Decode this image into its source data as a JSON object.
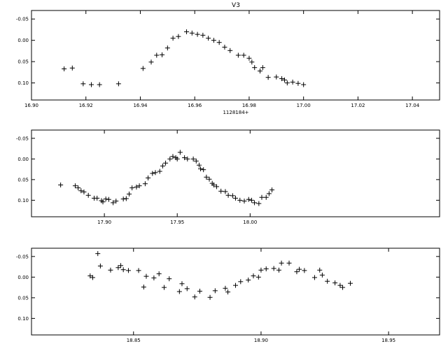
{
  "chart_data": [
    {
      "type": "scatter",
      "title": "V3",
      "offset_label": "1128184+",
      "ylim": [
        0.14,
        -0.07
      ],
      "y_inverted": true,
      "xlim": [
        16.9,
        17.05
      ],
      "xticks": [
        "16.90",
        "16.92",
        "16.94",
        "16.96",
        "16.98",
        "17.00",
        "17.02",
        "17.04"
      ],
      "xtick_values": [
        16.9,
        16.92,
        16.94,
        16.96,
        16.98,
        17.0,
        17.02,
        17.04
      ],
      "yticks": [
        "-0.05",
        "0.00",
        "0.05",
        "0.10"
      ],
      "ytick_values": [
        -0.05,
        0.0,
        0.05,
        0.1
      ],
      "grid": false,
      "marker": "plus",
      "series": [
        {
          "x": [
            16.912,
            16.915,
            16.919,
            16.922,
            16.925,
            16.932,
            16.941,
            16.944,
            16.946,
            16.948,
            16.95,
            16.952,
            16.954,
            16.957,
            16.959,
            16.961,
            16.963,
            16.965,
            16.967,
            16.969,
            16.971,
            16.973,
            16.976,
            16.978,
            16.98,
            16.981,
            16.982,
            16.984,
            16.985,
            16.987,
            16.99,
            16.992,
            16.993,
            16.994,
            16.996,
            16.998,
            17.0
          ],
          "y": [
            0.067,
            0.065,
            0.102,
            0.104,
            0.104,
            0.102,
            0.066,
            0.051,
            0.035,
            0.034,
            0.018,
            -0.005,
            -0.009,
            -0.02,
            -0.017,
            -0.014,
            -0.012,
            -0.005,
            0.0,
            0.005,
            0.016,
            0.024,
            0.035,
            0.035,
            0.042,
            0.051,
            0.064,
            0.072,
            0.064,
            0.087,
            0.086,
            0.09,
            0.093,
            0.1,
            0.098,
            0.101,
            0.104
          ]
        }
      ]
    },
    {
      "type": "scatter",
      "title": "",
      "ylim": [
        0.14,
        -0.07
      ],
      "y_inverted": true,
      "xlim": [
        17.85,
        18.13
      ],
      "xticks": [
        "17.90",
        "17.95",
        "18.00"
      ],
      "xtick_values": [
        17.9,
        17.95,
        18.0
      ],
      "yticks": [
        "-0.05",
        "0.00",
        "0.05",
        "0.10"
      ],
      "ytick_values": [
        -0.05,
        0.0,
        0.05,
        0.1
      ],
      "grid": false,
      "marker": "plus",
      "series": [
        {
          "x": [
            17.87,
            17.88,
            17.882,
            17.884,
            17.886,
            17.889,
            17.893,
            17.895,
            17.898,
            17.899,
            17.901,
            17.903,
            17.906,
            17.908,
            17.913,
            17.915,
            17.917,
            17.919,
            17.922,
            17.924,
            17.928,
            17.93,
            17.933,
            17.935,
            17.938,
            17.94,
            17.942,
            17.945,
            17.947,
            17.949,
            17.95,
            17.952,
            17.955,
            17.957,
            17.961,
            17.963,
            17.965,
            17.966,
            17.968,
            17.97,
            17.972,
            17.974,
            17.975,
            17.977,
            17.98,
            17.983,
            17.985,
            17.988,
            17.99,
            17.993,
            17.996,
            17.999,
            18.001,
            18.003,
            18.006,
            18.008,
            18.011,
            18.013,
            18.015
          ],
          "y": [
            0.063,
            0.065,
            0.07,
            0.077,
            0.08,
            0.088,
            0.095,
            0.095,
            0.101,
            0.104,
            0.097,
            0.098,
            0.106,
            0.102,
            0.097,
            0.096,
            0.085,
            0.07,
            0.068,
            0.065,
            0.06,
            0.046,
            0.035,
            0.033,
            0.03,
            0.017,
            0.01,
            0.0,
            -0.006,
            -0.003,
            0.0,
            -0.016,
            -0.003,
            0.0,
            0.0,
            0.005,
            0.015,
            0.024,
            0.026,
            0.044,
            0.049,
            0.059,
            0.063,
            0.067,
            0.078,
            0.079,
            0.088,
            0.089,
            0.095,
            0.1,
            0.102,
            0.098,
            0.1,
            0.106,
            0.108,
            0.093,
            0.093,
            0.084,
            0.075
          ]
        }
      ]
    },
    {
      "type": "scatter",
      "title": "",
      "ylim": [
        0.14,
        -0.07
      ],
      "y_inverted": true,
      "xlim": [
        18.81,
        18.97
      ],
      "xticks": [
        "18.85",
        "18.90",
        "18.95"
      ],
      "xtick_values": [
        18.85,
        18.9,
        18.95
      ],
      "yticks": [
        "-0.05",
        "0.00",
        "0.05",
        "0.10"
      ],
      "ytick_values": [
        -0.05,
        0.0,
        0.05,
        0.1
      ],
      "grid": false,
      "marker": "plus",
      "series": [
        {
          "x": [
            18.833,
            18.834,
            18.836,
            18.837,
            18.841,
            18.844,
            18.845,
            18.846,
            18.848,
            18.852,
            18.854,
            18.855,
            18.858,
            18.86,
            18.862,
            18.864,
            18.868,
            18.869,
            18.871,
            18.874,
            18.876,
            18.88,
            18.882,
            18.886,
            18.887,
            18.89,
            18.892,
            18.895,
            18.897,
            18.899,
            18.9,
            18.902,
            18.905,
            18.907,
            18.908,
            18.911,
            18.914,
            18.915,
            18.917,
            18.921,
            18.923,
            18.924,
            18.926,
            18.929,
            18.931,
            18.932,
            18.935
          ],
          "y": [
            -0.003,
            0.001,
            -0.057,
            -0.027,
            -0.017,
            -0.023,
            -0.028,
            -0.018,
            -0.016,
            -0.016,
            0.024,
            -0.002,
            0.002,
            -0.008,
            0.025,
            0.004,
            0.035,
            0.016,
            0.028,
            0.048,
            0.034,
            0.049,
            0.033,
            0.027,
            0.036,
            0.02,
            0.011,
            0.007,
            -0.003,
            0.0,
            -0.017,
            -0.02,
            -0.021,
            -0.017,
            -0.034,
            -0.034,
            -0.013,
            -0.019,
            -0.016,
            0.001,
            -0.017,
            -0.005,
            0.01,
            0.014,
            0.02,
            0.025,
            0.015
          ]
        }
      ]
    }
  ]
}
